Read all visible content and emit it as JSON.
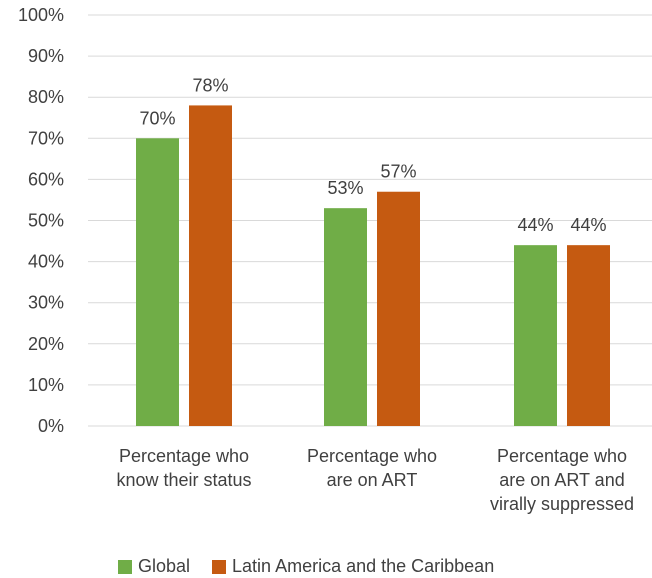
{
  "chart_data": {
    "type": "bar",
    "categories": [
      [
        "Percentage who",
        "know their status"
      ],
      [
        "Percentage who",
        "are on ART"
      ],
      [
        "Percentage who",
        "are on ART and",
        "virally suppressed"
      ]
    ],
    "series": [
      {
        "name": "Global",
        "values": [
          70,
          53,
          44
        ],
        "color": "#70ad47"
      },
      {
        "name": "Latin America and the Caribbean",
        "values": [
          78,
          57,
          44
        ],
        "color": "#c55a11"
      }
    ],
    "data_labels": [
      [
        "70%",
        "53%",
        "44%"
      ],
      [
        "78%",
        "57%",
        "44%"
      ]
    ],
    "ylim": [
      0,
      100
    ],
    "yticks": [
      {
        "value": 0,
        "label": "0%"
      },
      {
        "value": 10,
        "label": "10%"
      },
      {
        "value": 20,
        "label": "20%"
      },
      {
        "value": 30,
        "label": "30%"
      },
      {
        "value": 40,
        "label": "40%"
      },
      {
        "value": 50,
        "label": "50%"
      },
      {
        "value": 60,
        "label": "60%"
      },
      {
        "value": 70,
        "label": "70%"
      },
      {
        "value": 80,
        "label": "80%"
      },
      {
        "value": 90,
        "label": "90%"
      },
      {
        "value": 100,
        "label": "100%"
      }
    ],
    "grid": true,
    "legend_position": "bottom",
    "gridline_color": "#d9d9d9"
  }
}
